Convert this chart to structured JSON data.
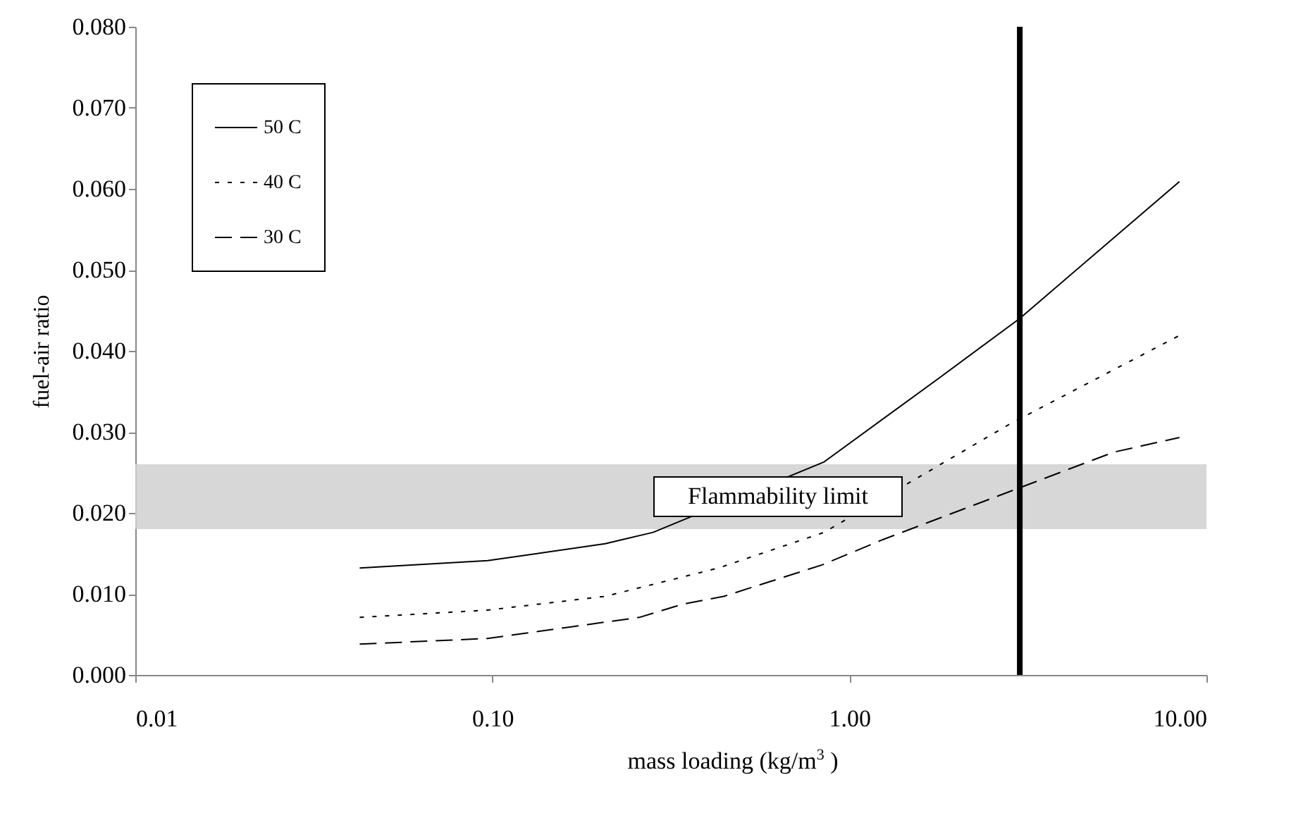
{
  "chart_data": {
    "type": "line",
    "xlabel": "mass loading (kg/m$^{3}$ )",
    "ylabel": "fuel-air ratio",
    "log": "x",
    "grid": false,
    "legend": "top left",
    "xlim": [
      0.01,
      10
    ],
    "xticks": [
      {
        "value": 0.01,
        "label": "0.01"
      },
      {
        "value": 0.1,
        "label": "0.10"
      },
      {
        "value": 1,
        "label": "1.00"
      },
      {
        "value": 10,
        "label": "10.00"
      }
    ],
    "ylim": [
      0,
      0.08
    ],
    "yticks": [
      {
        "value": 0,
        "label": "0.000"
      },
      {
        "value": 0.01,
        "label": "0.010"
      },
      {
        "value": 0.02,
        "label": "0.020"
      },
      {
        "value": 0.03,
        "label": "0.030"
      },
      {
        "value": 0.04,
        "label": "0.040"
      },
      {
        "value": 0.05,
        "label": "0.050"
      },
      {
        "value": 0.06,
        "label": "0.060"
      },
      {
        "value": 0.07,
        "label": "0.070"
      },
      {
        "value": 0.08,
        "label": "0.080"
      }
    ],
    "series": [
      {
        "name": "50 C",
        "color": "#000000",
        "line_style": "solid",
        "x": [
          0.0425,
          0.097,
          0.207,
          0.282,
          0.85,
          1.79,
          3.0,
          8.4
        ],
        "values": [
          0.0132,
          0.0141,
          0.0162,
          0.0176,
          0.0263,
          0.0367,
          0.044,
          0.0609
        ]
      },
      {
        "name": "40 C",
        "color": "#000000",
        "line_style": "dotted",
        "x": [
          0.0425,
          0.097,
          0.207,
          0.43,
          0.85,
          2.82,
          8.4
        ],
        "values": [
          0.0071,
          0.008,
          0.0097,
          0.0132,
          0.0176,
          0.031,
          0.0419
        ]
      },
      {
        "name": "30 C",
        "color": "#000000",
        "line_style": "dashed",
        "x": [
          0.0425,
          0.097,
          0.164,
          0.258,
          0.339,
          0.445,
          0.841,
          1.24,
          5.5,
          8.4
        ],
        "values": [
          0.0038,
          0.0045,
          0.0059,
          0.0071,
          0.0087,
          0.0097,
          0.0136,
          0.0167,
          0.0275,
          0.0293
        ]
      }
    ],
    "bands": [
      {
        "axis": "y",
        "from": 0.018,
        "to": 0.026,
        "label": "Flammability limit",
        "color": "#d0d0d0"
      }
    ],
    "ref_lines": [
      {
        "axis": "x",
        "value": 3.0,
        "color": "#000000"
      }
    ]
  }
}
